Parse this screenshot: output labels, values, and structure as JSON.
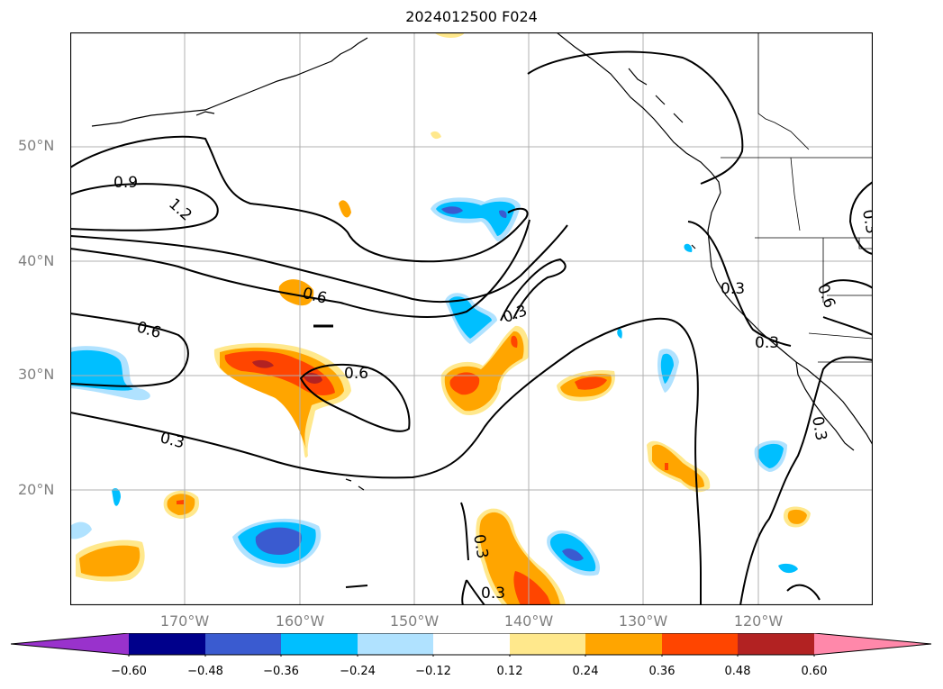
{
  "title": "2024012500 F024",
  "map": {
    "lat_labels": [
      "50°N",
      "40°N",
      "30°N",
      "20°N"
    ],
    "lon_labels": [
      "170°W",
      "160°W",
      "150°W",
      "140°W",
      "130°W",
      "120°W"
    ],
    "contour_labels": [
      "0.9",
      "1.2",
      "0.6",
      "0.6",
      "0.6",
      "0.3",
      "0.3",
      "0.3",
      "0.3",
      "0.3",
      "0.3",
      "0.6",
      "0.3",
      "0.3"
    ],
    "line_color": "#000000",
    "grid_color": "#b0b0b0"
  },
  "colorbar": {
    "ticks": [
      "−0.60",
      "−0.48",
      "−0.36",
      "−0.24",
      "−0.12",
      "0.12",
      "0.24",
      "0.36",
      "0.48",
      "0.60"
    ],
    "colors": [
      "#9932cc",
      "#00008b",
      "#3a5bd0",
      "#00bfff",
      "#b0e2ff",
      "#ffffff",
      "#ffe88c",
      "#ffa500",
      "#ff4500",
      "#b22222",
      "#ff88aa"
    ]
  }
}
